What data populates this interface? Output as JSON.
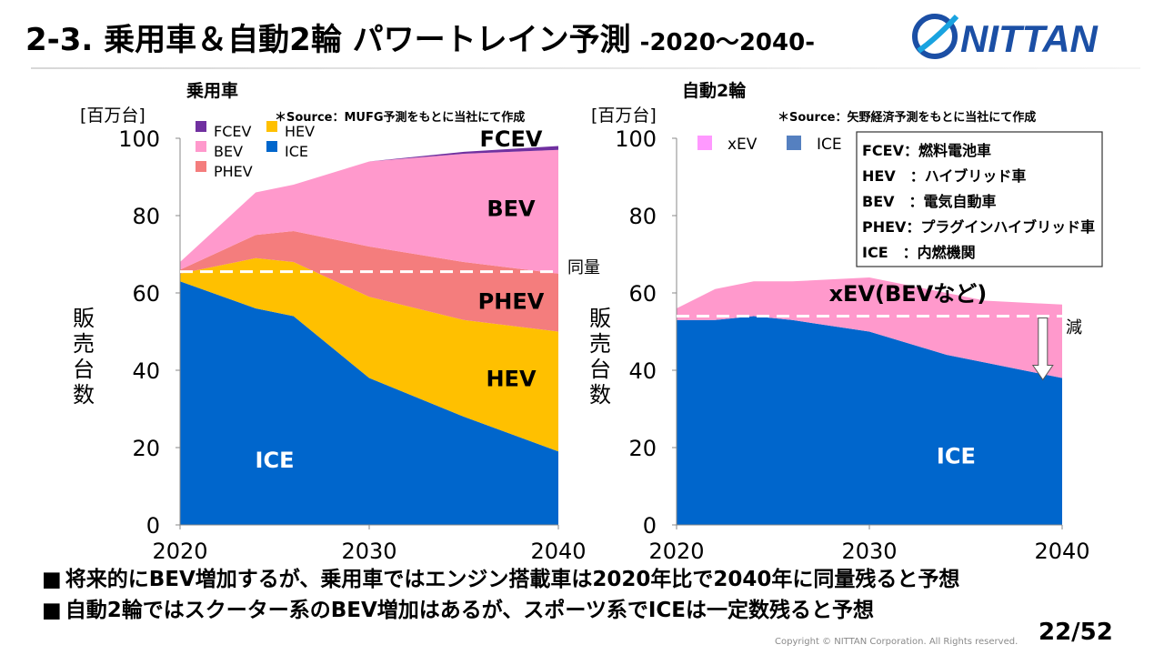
{
  "page": {
    "title": "2-3. 乗用車＆自動2輪 パワートレイン予測",
    "title_sub": "-2020～2040-",
    "logo_text": "NITTAN",
    "bullets": [
      "将来的にBEV増加するが、乗用車ではエンジン搭載車は2020年比で2040年に同量残ると予想",
      "自動2輪ではスクーター系のBEV増加はあるが、スポーツ系でICEは一定数残ると予想"
    ],
    "bullet_marker": "■",
    "copyright": "Copyright © NITTAN Corporation. All Rights reserved.",
    "page_number": "22/52",
    "colors": {
      "ICE": "#0066cc",
      "HEV": "#ffc000",
      "PHEV": "#f47d7d",
      "BEV": "#ff99cc",
      "FCEV": "#7030a0",
      "xEV": "#ff99cc",
      "logo": "#1b4fa5",
      "logo_accent": "#19a3e0"
    }
  },
  "legend_box": {
    "rows": [
      {
        "abbr": "FCEV",
        "sep": "：",
        "desc": "燃料電池車"
      },
      {
        "abbr": "HEV",
        "sep": "　：",
        "desc": "ハイブリッド車"
      },
      {
        "abbr": "BEV",
        "sep": "　：",
        "desc": "電気自動車"
      },
      {
        "abbr": "PHEV",
        "sep": "：",
        "desc": "プラグインハイブリッド車"
      },
      {
        "abbr": "ICE",
        "sep": "　：",
        "desc": "内燃機関"
      }
    ]
  },
  "chart_data": [
    {
      "type": "area",
      "stacked": true,
      "heading": "乗用車",
      "unit": "[百万台]",
      "ylabel": "販売台数",
      "source": "＊Source：MUFG予測をもとに当社にて作成",
      "x": [
        2020,
        2024,
        2026,
        2030,
        2035,
        2040
      ],
      "xticks": [
        2020,
        2030,
        2040
      ],
      "ylim": [
        0,
        100
      ],
      "yticks": [
        0,
        20,
        40,
        60,
        80,
        100
      ],
      "grid": false,
      "legend": [
        {
          "name": "FCEV",
          "key": "FCEV"
        },
        {
          "name": "HEV",
          "key": "HEV"
        },
        {
          "name": "BEV",
          "key": "BEV"
        },
        {
          "name": "ICE",
          "key": "ICE"
        },
        {
          "name": "PHEV",
          "key": "PHEV"
        }
      ],
      "series": [
        {
          "name": "ICE",
          "values": [
            63,
            56,
            54,
            38,
            28,
            19
          ]
        },
        {
          "name": "HEV",
          "values": [
            2,
            13,
            14,
            21,
            25,
            31
          ]
        },
        {
          "name": "PHEV",
          "values": [
            1,
            6,
            8,
            13,
            15,
            15
          ]
        },
        {
          "name": "BEV",
          "values": [
            2,
            11,
            12,
            22,
            28,
            32
          ]
        },
        {
          "name": "FCEV",
          "values": [
            0,
            0,
            0,
            0,
            0.5,
            1
          ]
        }
      ],
      "area_labels": {
        "ICE": "ICE",
        "HEV": "HEV",
        "PHEV": "PHEV",
        "BEV": "BEV",
        "FCEV": "FCEV"
      },
      "reference_line": {
        "value": 65.5,
        "label": "同量"
      }
    },
    {
      "type": "area",
      "stacked": true,
      "heading": "自動2輪",
      "unit": "[百万台]",
      "ylabel": "販売台数",
      "source": "＊Source：矢野経済予測をもとに当社にて作成",
      "x": [
        2020,
        2022,
        2024,
        2026,
        2030,
        2034,
        2036,
        2040
      ],
      "xticks": [
        2020,
        2030,
        2040
      ],
      "ylim": [
        0,
        100
      ],
      "yticks": [
        0,
        20,
        40,
        60,
        80,
        100
      ],
      "grid": false,
      "legend": [
        {
          "name": "xEV",
          "key": "xEV"
        },
        {
          "name": "ICE",
          "key": "ICE"
        }
      ],
      "series": [
        {
          "name": "ICE",
          "values": [
            53,
            53,
            54,
            53,
            50,
            44,
            42,
            38
          ]
        },
        {
          "name": "xEV",
          "values": [
            3,
            8,
            9,
            10,
            14,
            16,
            16,
            19
          ]
        }
      ],
      "area_labels": {
        "ICE": "ICE",
        "xEV": "xEV(BEVなど)"
      },
      "reference_line": {
        "value": 54,
        "label": "減"
      }
    }
  ]
}
